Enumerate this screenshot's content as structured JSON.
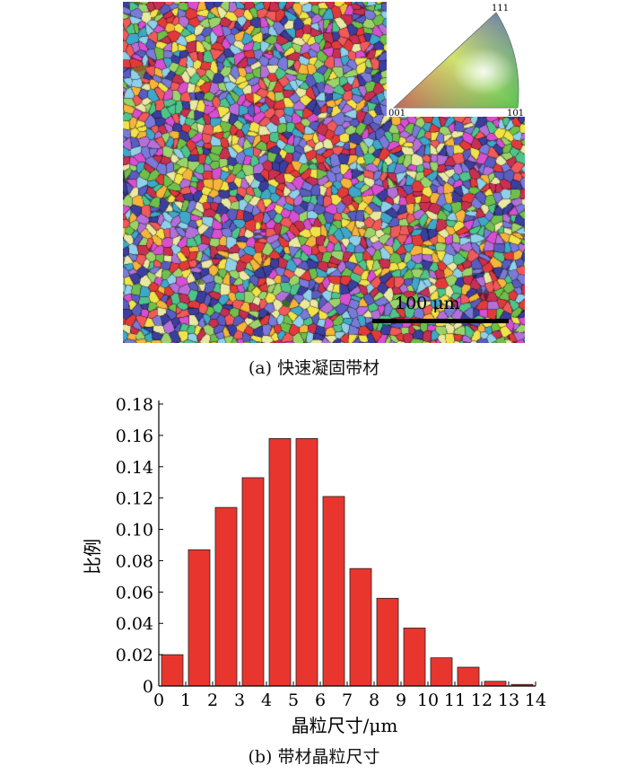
{
  "micrograph": {
    "scalebar_label": "100 μm",
    "caption": "(a) 快速凝固带材",
    "ipf_legend": {
      "top": "111",
      "left": "001",
      "right": "101"
    }
  },
  "caption_b": "(b) 带材晶粒尺寸",
  "chart_data": {
    "type": "bar",
    "x": [
      0.5,
      1.5,
      2.5,
      3.5,
      4.5,
      5.5,
      6.5,
      7.5,
      8.5,
      9.5,
      10.5,
      11.5,
      12.5,
      13.5
    ],
    "values": [
      0.02,
      0.087,
      0.114,
      0.133,
      0.158,
      0.158,
      0.121,
      0.075,
      0.056,
      0.037,
      0.018,
      0.012,
      0.003,
      0.001
    ],
    "bar_width": 0.8,
    "xlabel": "晶粒尺寸/μm",
    "ylabel": "比例",
    "xlim": [
      0,
      14
    ],
    "ylim": [
      0,
      0.18
    ],
    "xticks": [
      0,
      1,
      2,
      3,
      4,
      5,
      6,
      7,
      8,
      9,
      10,
      11,
      12,
      13,
      14
    ],
    "yticks": [
      0,
      0.02,
      0.04,
      0.06,
      0.08,
      0.1,
      0.12,
      0.14,
      0.16,
      0.18
    ],
    "ytick_labels": [
      "0",
      "0.02",
      "0.04",
      "0.06",
      "0.08",
      "0.10",
      "0.12",
      "0.14",
      "0.16",
      "0.18"
    ],
    "bar_color": "#e8362e",
    "grid": false
  }
}
